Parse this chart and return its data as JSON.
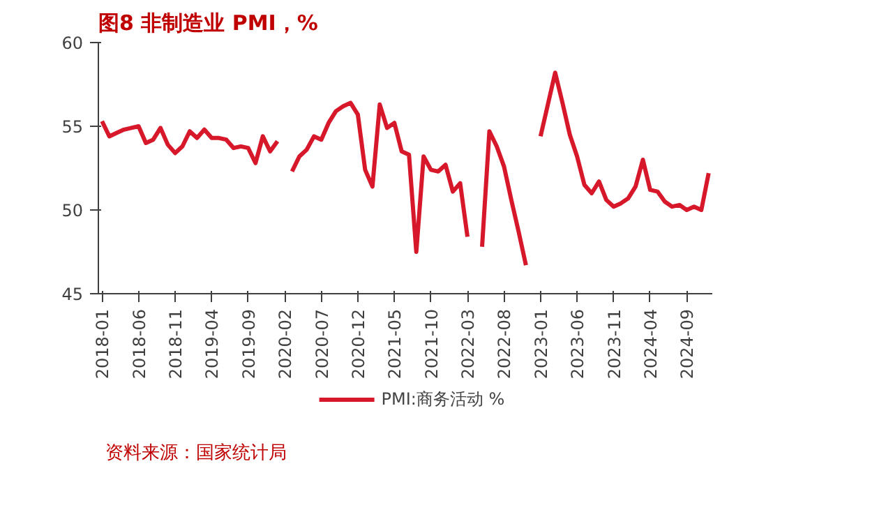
{
  "chart_data": {
    "type": "line",
    "title": "图8  非制造业 PMI，%",
    "categories": [
      "2018-01",
      null,
      null,
      null,
      null,
      "2018-06",
      null,
      null,
      null,
      null,
      "2018-11",
      null,
      null,
      null,
      null,
      "2019-04",
      null,
      null,
      null,
      null,
      "2019-09",
      null,
      null,
      null,
      null,
      "2020-02",
      null,
      null,
      null,
      null,
      "2020-07",
      null,
      null,
      null,
      null,
      "2020-12",
      null,
      null,
      null,
      null,
      "2021-05",
      null,
      null,
      null,
      null,
      "2021-10",
      null,
      null,
      null,
      null,
      "2022-03",
      null,
      null,
      null,
      null,
      "2022-08",
      null,
      null,
      null,
      null,
      "2023-01",
      null,
      null,
      null,
      null,
      "2023-06",
      null,
      null,
      null,
      null,
      "2023-11",
      null,
      null,
      null,
      null,
      "2024-04",
      null,
      null,
      null,
      null,
      "2024-09",
      null,
      null,
      null
    ],
    "series": [
      {
        "name": "PMI:商务活动 %",
        "color": "#d7182a",
        "values": [
          55.3,
          54.4,
          54.6,
          54.8,
          54.9,
          55.0,
          54.0,
          54.2,
          54.9,
          53.9,
          53.4,
          53.8,
          54.7,
          54.3,
          54.8,
          54.3,
          54.3,
          54.2,
          53.7,
          53.8,
          53.7,
          52.8,
          54.4,
          53.5,
          54.1,
          null,
          52.3,
          53.2,
          53.6,
          54.4,
          54.2,
          55.2,
          55.9,
          56.2,
          56.4,
          55.7,
          52.4,
          51.4,
          56.3,
          54.9,
          55.2,
          53.5,
          53.3,
          47.5,
          53.2,
          52.4,
          52.3,
          52.7,
          51.1,
          51.6,
          48.4,
          null,
          47.8,
          54.7,
          53.8,
          52.6,
          50.6,
          48.7,
          46.7,
          null,
          54.4,
          56.3,
          58.2,
          56.4,
          54.5,
          53.2,
          51.5,
          51.0,
          51.7,
          50.6,
          50.2,
          50.4,
          50.7,
          51.4,
          53.0,
          51.2,
          51.1,
          50.5,
          50.2,
          50.3,
          50.0,
          50.2,
          50.0,
          52.2
        ]
      }
    ],
    "ylim": [
      45,
      60
    ],
    "yticks": [
      45,
      50,
      55,
      60
    ],
    "grid": false,
    "legend": "bottom",
    "marker": "none",
    "line_style": "solid",
    "annotations": [
      "资料来源：国家统计局"
    ]
  }
}
